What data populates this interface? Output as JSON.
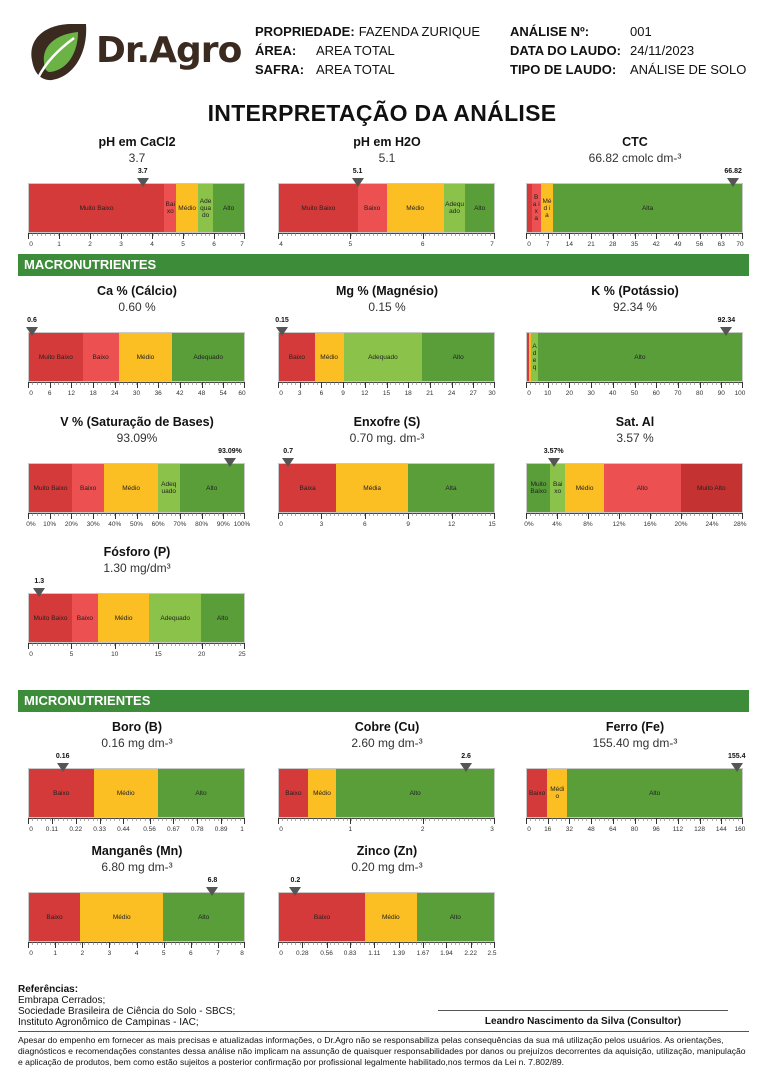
{
  "brand": {
    "name": "Dr.Agro",
    "colors": {
      "leaf_green": "#6ab344",
      "leaf_dark": "#3a2a1f"
    }
  },
  "header": {
    "propriedade_label": "PROPRIEDADE:",
    "propriedade": "FAZENDA ZURIQUE",
    "area_label": "ÁREA:",
    "area": "AREA TOTAL",
    "safra_label": "SAFRA:",
    "safra": "AREA TOTAL",
    "analise_label": "ANÁLISE Nº:",
    "analise": "001",
    "data_label": "DATA DO LAUDO:",
    "data": "24/11/2023",
    "tipo_label": "TIPO DE LAUDO:",
    "tipo": "ANÁLISE DE SOLO"
  },
  "title": "INTERPRETAÇÃO DA ANÁLISE",
  "sections": {
    "macro": "MACRONUTRIENTES",
    "micro": "MICRONUTRIENTES"
  },
  "colors": {
    "muito_baixo": "#d43a3a",
    "baixo": "#ec5050",
    "medio": "#fbbf24",
    "adequado": "#8bc34a",
    "alto": "#5a9e3a",
    "muito_alto": "#c43232",
    "section": "#3c8c39"
  },
  "chart_data": [
    {
      "id": "ph-cacl2",
      "type": "bar",
      "title": "pH em CaCl2",
      "value_text": "3.7",
      "marker": 3.7,
      "marker_label": "3.7",
      "range": [
        0,
        7
      ],
      "ticks": [
        "0",
        "1",
        "2",
        "3",
        "4",
        "5",
        "6",
        "7"
      ],
      "tick_values": [
        0,
        1,
        2,
        3,
        4,
        5,
        6,
        7
      ],
      "segments": [
        {
          "label": "Muito Baixo",
          "from": 0,
          "to": 4.4,
          "color": "muito_baixo"
        },
        {
          "label": "Bai xo",
          "from": 4.4,
          "to": 4.8,
          "color": "baixo"
        },
        {
          "label": "Médio",
          "from": 4.8,
          "to": 5.5,
          "color": "medio"
        },
        {
          "label": "Ade qua do",
          "from": 5.5,
          "to": 6.0,
          "color": "adequado"
        },
        {
          "label": "Alto",
          "from": 6.0,
          "to": 7,
          "color": "alto"
        }
      ]
    },
    {
      "id": "ph-h2o",
      "type": "bar",
      "title": "pH em H2O",
      "value_text": "5.1",
      "marker": 5.1,
      "marker_label": "5.1",
      "range": [
        4,
        7
      ],
      "ticks": [
        "4",
        "5",
        "6",
        "7"
      ],
      "tick_values": [
        4,
        5,
        6,
        7
      ],
      "segments": [
        {
          "label": "Muito Baixo",
          "from": 4,
          "to": 5.1,
          "color": "muito_baixo"
        },
        {
          "label": "Baixo",
          "from": 5.1,
          "to": 5.5,
          "color": "baixo"
        },
        {
          "label": "Médio",
          "from": 5.5,
          "to": 6.3,
          "color": "medio"
        },
        {
          "label": "Adequado",
          "from": 6.3,
          "to": 6.6,
          "color": "adequado"
        },
        {
          "label": "Alto",
          "from": 6.6,
          "to": 7,
          "color": "alto"
        }
      ]
    },
    {
      "id": "ctc",
      "type": "bar",
      "title": "CTC",
      "value_text": "66.82 cmolc dm-³",
      "marker": 66.82,
      "marker_label": "66.82",
      "range": [
        0,
        70
      ],
      "ticks": [
        "0",
        "7",
        "14",
        "21",
        "28",
        "35",
        "42",
        "49",
        "56",
        "63",
        "70"
      ],
      "tick_values": [
        0,
        7,
        14,
        21,
        28,
        35,
        42,
        49,
        56,
        63,
        70
      ],
      "segments": [
        {
          "label": "",
          "from": 0,
          "to": 1.5,
          "color": "muito_baixo"
        },
        {
          "label": "Ba ix a",
          "from": 1.5,
          "to": 4.5,
          "color": "baixo"
        },
        {
          "label": "Méd ia",
          "from": 4.5,
          "to": 8.5,
          "color": "medio"
        },
        {
          "label": "Alta",
          "from": 8.5,
          "to": 70,
          "color": "alto"
        }
      ]
    },
    {
      "id": "calcio",
      "type": "bar",
      "title": "Ca % (Cálcio)",
      "value_text": "0.60 %",
      "marker": 0.6,
      "marker_label": "0.6",
      "range": [
        0,
        60
      ],
      "ticks": [
        "0",
        "6",
        "12",
        "18",
        "24",
        "30",
        "36",
        "42",
        "48",
        "54",
        "60"
      ],
      "tick_values": [
        0,
        6,
        12,
        18,
        24,
        30,
        36,
        42,
        48,
        54,
        60
      ],
      "segments": [
        {
          "label": "Muito Baixo",
          "from": 0,
          "to": 15,
          "color": "muito_baixo"
        },
        {
          "label": "Baixo",
          "from": 15,
          "to": 25,
          "color": "baixo"
        },
        {
          "label": "Médio",
          "from": 25,
          "to": 40,
          "color": "medio"
        },
        {
          "label": "Adequado",
          "from": 40,
          "to": 60,
          "color": "alto"
        }
      ]
    },
    {
      "id": "magnesio",
      "type": "bar",
      "title": "Mg % (Magnésio)",
      "value_text": "0.15 %",
      "marker": 0.15,
      "marker_label": "0.15",
      "range": [
        0,
        30
      ],
      "ticks": [
        "0",
        "3",
        "6",
        "9",
        "12",
        "15",
        "18",
        "21",
        "24",
        "27",
        "30"
      ],
      "tick_values": [
        0,
        3,
        6,
        9,
        12,
        15,
        18,
        21,
        24,
        27,
        30
      ],
      "segments": [
        {
          "label": "Baixo",
          "from": 0,
          "to": 5,
          "color": "muito_baixo"
        },
        {
          "label": "Médio",
          "from": 5,
          "to": 9,
          "color": "medio"
        },
        {
          "label": "Adequado",
          "from": 9,
          "to": 20,
          "color": "adequado"
        },
        {
          "label": "Alto",
          "from": 20,
          "to": 30,
          "color": "alto"
        }
      ]
    },
    {
      "id": "potassio",
      "type": "bar",
      "title": "K % (Potássio)",
      "value_text": "92.34 %",
      "marker": 92.34,
      "marker_label": "92.34",
      "range": [
        0,
        100
      ],
      "ticks": [
        "0",
        "10",
        "20",
        "30",
        "40",
        "50",
        "60",
        "70",
        "80",
        "90",
        "100"
      ],
      "tick_values": [
        0,
        10,
        20,
        30,
        40,
        50,
        60,
        70,
        80,
        90,
        100
      ],
      "segments": [
        {
          "label": "",
          "from": 0,
          "to": 1,
          "color": "muito_baixo"
        },
        {
          "label": "",
          "from": 1,
          "to": 2,
          "color": "medio"
        },
        {
          "label": "A d e q",
          "from": 2,
          "to": 5,
          "color": "adequado"
        },
        {
          "label": "Alto",
          "from": 5,
          "to": 100,
          "color": "alto"
        }
      ]
    },
    {
      "id": "saturacao",
      "type": "bar",
      "title": "V % (Saturação de Bases)",
      "value_text": "93.09%",
      "marker": 93.09,
      "marker_label": "93.09%",
      "range": [
        0,
        100
      ],
      "ticks": [
        "0%",
        "10%",
        "20%",
        "30%",
        "40%",
        "50%",
        "60%",
        "70%",
        "80%",
        "90%",
        "100%"
      ],
      "tick_values": [
        0,
        10,
        20,
        30,
        40,
        50,
        60,
        70,
        80,
        90,
        100
      ],
      "segments": [
        {
          "label": "Muito Baixo",
          "from": 0,
          "to": 20,
          "color": "muito_baixo"
        },
        {
          "label": "Baixo",
          "from": 20,
          "to": 35,
          "color": "baixo"
        },
        {
          "label": "Médio",
          "from": 35,
          "to": 60,
          "color": "medio"
        },
        {
          "label": "Adeq uado",
          "from": 60,
          "to": 70,
          "color": "adequado"
        },
        {
          "label": "Alto",
          "from": 70,
          "to": 100,
          "color": "alto"
        }
      ]
    },
    {
      "id": "enxofre",
      "type": "bar",
      "title": "Enxofre (S)",
      "value_text": "0.70 mg. dm-³",
      "marker": 0.7,
      "marker_label": "0.7",
      "range": [
        0,
        15
      ],
      "ticks": [
        "0",
        "3",
        "6",
        "9",
        "12",
        "15"
      ],
      "tick_values": [
        0,
        3,
        6,
        9,
        12,
        15
      ],
      "segments": [
        {
          "label": "Baixa",
          "from": 0,
          "to": 4,
          "color": "muito_baixo"
        },
        {
          "label": "Média",
          "from": 4,
          "to": 9,
          "color": "medio"
        },
        {
          "label": "Alta",
          "from": 9,
          "to": 15,
          "color": "alto"
        }
      ]
    },
    {
      "id": "sat-al",
      "type": "bar",
      "title": "Sat. Al",
      "value_text": "3.57 %",
      "marker": 3.57,
      "marker_label": "3.57%",
      "range": [
        0,
        28
      ],
      "ticks": [
        "0%",
        "4%",
        "8%",
        "12%",
        "16%",
        "20%",
        "24%",
        "28%"
      ],
      "tick_values": [
        0,
        4,
        8,
        12,
        16,
        20,
        24,
        28
      ],
      "segments": [
        {
          "label": "Muito Baixo",
          "from": 0,
          "to": 3,
          "color": "alto"
        },
        {
          "label": "Bai xo",
          "from": 3,
          "to": 5,
          "color": "adequado"
        },
        {
          "label": "Médio",
          "from": 5,
          "to": 10,
          "color": "medio"
        },
        {
          "label": "Alto",
          "from": 10,
          "to": 20,
          "color": "baixo"
        },
        {
          "label": "Muito Alto",
          "from": 20,
          "to": 28,
          "color": "muito_alto"
        }
      ]
    },
    {
      "id": "fosforo",
      "type": "bar",
      "title": "Fósforo (P)",
      "value_text": "1.30 mg/dm³",
      "marker": 1.3,
      "marker_label": "1.3",
      "range": [
        0,
        25
      ],
      "ticks": [
        "0",
        "5",
        "10",
        "15",
        "20",
        "25"
      ],
      "tick_values": [
        0,
        5,
        10,
        15,
        20,
        25
      ],
      "segments": [
        {
          "label": "Muito Baixo",
          "from": 0,
          "to": 5,
          "color": "muito_baixo"
        },
        {
          "label": "Baixo",
          "from": 5,
          "to": 8,
          "color": "baixo"
        },
        {
          "label": "Médio",
          "from": 8,
          "to": 14,
          "color": "medio"
        },
        {
          "label": "Adequado",
          "from": 14,
          "to": 20,
          "color": "adequado"
        },
        {
          "label": "Alto",
          "from": 20,
          "to": 25,
          "color": "alto"
        }
      ]
    },
    {
      "id": "boro",
      "type": "bar",
      "title": "Boro (B)",
      "value_text": "0.16 mg dm-³",
      "marker": 0.16,
      "marker_label": "0.16",
      "range": [
        0,
        1
      ],
      "ticks": [
        "0",
        "0.11",
        "0.22",
        "0.33",
        "0.44",
        "0.56",
        "0.67",
        "0.78",
        "0.89",
        "1"
      ],
      "tick_values": [
        0,
        0.11,
        0.22,
        0.33,
        0.44,
        0.56,
        0.67,
        0.78,
        0.89,
        1
      ],
      "segments": [
        {
          "label": "Baixo",
          "from": 0,
          "to": 0.3,
          "color": "muito_baixo"
        },
        {
          "label": "Médio",
          "from": 0.3,
          "to": 0.6,
          "color": "medio"
        },
        {
          "label": "Alto",
          "from": 0.6,
          "to": 1,
          "color": "alto"
        }
      ]
    },
    {
      "id": "cobre",
      "type": "bar",
      "title": "Cobre (Cu)",
      "value_text": "2.60 mg dm-³",
      "marker": 2.6,
      "marker_label": "2.6",
      "range": [
        0,
        3
      ],
      "ticks": [
        "0",
        "1",
        "2",
        "3"
      ],
      "tick_values": [
        0,
        1,
        2,
        3
      ],
      "segments": [
        {
          "label": "Baixo",
          "from": 0,
          "to": 0.4,
          "color": "muito_baixo"
        },
        {
          "label": "Médio",
          "from": 0.4,
          "to": 0.8,
          "color": "medio"
        },
        {
          "label": "Alto",
          "from": 0.8,
          "to": 3,
          "color": "alto"
        }
      ]
    },
    {
      "id": "ferro",
      "type": "bar",
      "title": "Ferro (Fe)",
      "value_text": "155.40 mg dm-³",
      "marker": 155.4,
      "marker_label": "155.4",
      "range": [
        0,
        160
      ],
      "ticks": [
        "0",
        "16",
        "32",
        "48",
        "64",
        "80",
        "96",
        "112",
        "128",
        "144",
        "160"
      ],
      "tick_values": [
        0,
        16,
        32,
        48,
        64,
        80,
        96,
        112,
        128,
        144,
        160
      ],
      "segments": [
        {
          "label": "Baixo",
          "from": 0,
          "to": 15,
          "color": "muito_baixo"
        },
        {
          "label": "Médi o",
          "from": 15,
          "to": 30,
          "color": "medio"
        },
        {
          "label": "Alto",
          "from": 30,
          "to": 160,
          "color": "alto"
        }
      ]
    },
    {
      "id": "manganes",
      "type": "bar",
      "title": "Manganês (Mn)",
      "value_text": "6.80 mg dm-³",
      "marker": 6.8,
      "marker_label": "6.8",
      "range": [
        0,
        8
      ],
      "ticks": [
        "0",
        "1",
        "2",
        "3",
        "4",
        "5",
        "6",
        "7",
        "8"
      ],
      "tick_values": [
        0,
        1,
        2,
        3,
        4,
        5,
        6,
        7,
        8
      ],
      "segments": [
        {
          "label": "Baixo",
          "from": 0,
          "to": 1.9,
          "color": "muito_baixo"
        },
        {
          "label": "Médio",
          "from": 1.9,
          "to": 5,
          "color": "medio"
        },
        {
          "label": "Alto",
          "from": 5,
          "to": 8,
          "color": "alto"
        }
      ]
    },
    {
      "id": "zinco",
      "type": "bar",
      "title": "Zinco (Zn)",
      "value_text": "0.20 mg dm-³",
      "marker": 0.2,
      "marker_label": "0.2",
      "range": [
        0,
        2.5
      ],
      "ticks": [
        "0",
        "0.28",
        "0.56",
        "0.83",
        "1.11",
        "1.39",
        "1.67",
        "1.94",
        "2.22",
        "2.5"
      ],
      "tick_values": [
        0,
        0.28,
        0.56,
        0.83,
        1.11,
        1.39,
        1.67,
        1.94,
        2.22,
        2.5
      ],
      "segments": [
        {
          "label": "Baixo",
          "from": 0,
          "to": 1.0,
          "color": "muito_baixo"
        },
        {
          "label": "Médio",
          "from": 1.0,
          "to": 1.6,
          "color": "medio"
        },
        {
          "label": "Alto",
          "from": 1.6,
          "to": 2.5,
          "color": "alto"
        }
      ]
    }
  ],
  "references": {
    "title": "Referências:",
    "items": [
      "Embrapa Cerrados;",
      "Sociedade Brasileira de Ciência do Solo - SBCS;",
      "Instituto Agronômico de Campinas - IAC;"
    ]
  },
  "signature": "Leandro Nascimento da Silva (Consultor)",
  "disclaimer": "Apesar do empenho em fornecer as mais precisas e atualizadas informações, o Dr.Agro não se responsabiliza pelas consequências da sua má utilização pelos usuários. As orientações, diagnósticos e recomendações constantes dessa análise não implicam na assunção de quaisquer responsabilidades por danos ou prejuízos decorrentes da aquisição, utilização, manipulação e aplicação de produtos, bem como estão sujeitos a posterior confirmação por profissional legalmente habilitado,nos termos da Lei n. 7.802/89."
}
